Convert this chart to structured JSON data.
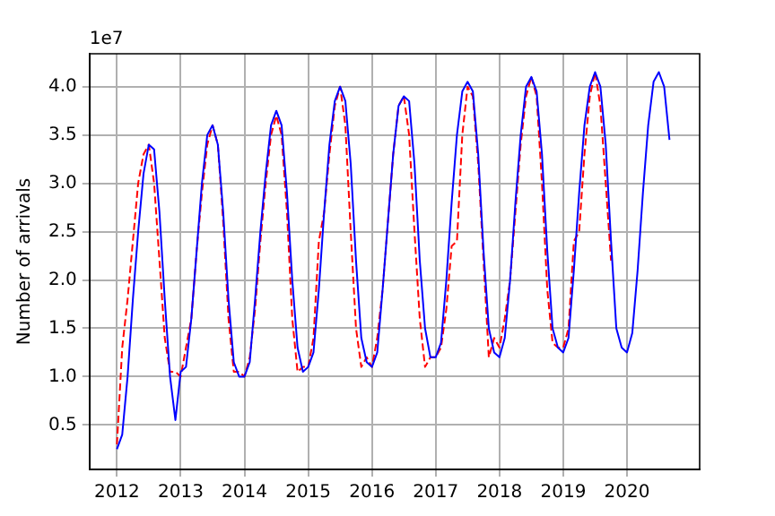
{
  "chart_data": {
    "type": "line",
    "ylabel": "Number of arrivals",
    "annotations": [
      "1e7"
    ],
    "grid": true,
    "marker": "none",
    "xlim": [
      2011.57,
      2021.14
    ],
    "xticks": [
      2012,
      2013,
      2014,
      2015,
      2016,
      2017,
      2018,
      2019,
      2020
    ],
    "ylim": [
      0.04,
      4.34
    ],
    "yticks": [
      {
        "value": 0.5,
        "label": "0.5"
      },
      {
        "value": 1,
        "label": "1.0"
      },
      {
        "value": 1.5,
        "label": "1.5"
      },
      {
        "value": 2,
        "label": "2.0"
      },
      {
        "value": 2.5,
        "label": "2.5"
      },
      {
        "value": 3,
        "label": "3.0"
      },
      {
        "value": 3.5,
        "label": "3.5"
      },
      {
        "value": 4,
        "label": "4.0"
      }
    ],
    "series": [
      {
        "color": "#0000ff",
        "line_style": "solid",
        "x": [
          2012,
          2012.083,
          2012.167,
          2012.25,
          2012.333,
          2012.417,
          2012.5,
          2012.583,
          2012.667,
          2012.75,
          2012.833,
          2012.917,
          2013,
          2013.083,
          2013.167,
          2013.25,
          2013.333,
          2013.417,
          2013.5,
          2013.583,
          2013.667,
          2013.75,
          2013.833,
          2013.917,
          2014,
          2014.083,
          2014.167,
          2014.25,
          2014.333,
          2014.417,
          2014.5,
          2014.583,
          2014.667,
          2014.75,
          2014.833,
          2014.917,
          2015,
          2015.083,
          2015.167,
          2015.25,
          2015.333,
          2015.417,
          2015.5,
          2015.583,
          2015.667,
          2015.75,
          2015.833,
          2015.917,
          2016,
          2016.083,
          2016.167,
          2016.25,
          2016.333,
          2016.417,
          2016.5,
          2016.583,
          2016.667,
          2016.75,
          2016.833,
          2016.917,
          2017,
          2017.083,
          2017.167,
          2017.25,
          2017.333,
          2017.417,
          2017.5,
          2017.583,
          2017.667,
          2017.75,
          2017.833,
          2017.917,
          2018,
          2018.083,
          2018.167,
          2018.25,
          2018.333,
          2018.417,
          2018.5,
          2018.583,
          2018.667,
          2018.75,
          2018.833,
          2018.917,
          2019,
          2019.083,
          2019.167,
          2019.25,
          2019.333,
          2019.417,
          2019.5,
          2019.583,
          2019.667,
          2019.75,
          2019.833,
          2019.917,
          2020,
          2020.083,
          2020.167,
          2020.25,
          2020.333,
          2020.417,
          2020.5,
          2020.583,
          2020.667
        ],
        "values": [
          0.25,
          0.4,
          1.0,
          1.8,
          2.5,
          3.1,
          3.4,
          3.35,
          2.7,
          1.8,
          1.0,
          0.55,
          1.05,
          1.1,
          1.6,
          2.3,
          3.0,
          3.5,
          3.6,
          3.4,
          2.7,
          1.8,
          1.15,
          1.0,
          1.0,
          1.15,
          1.8,
          2.5,
          3.1,
          3.6,
          3.75,
          3.6,
          2.9,
          2.0,
          1.3,
          1.05,
          1.1,
          1.25,
          1.9,
          2.7,
          3.4,
          3.85,
          4.0,
          3.85,
          3.2,
          2.2,
          1.4,
          1.15,
          1.1,
          1.25,
          1.9,
          2.6,
          3.3,
          3.8,
          3.9,
          3.85,
          3.2,
          2.2,
          1.5,
          1.2,
          1.2,
          1.35,
          2.0,
          2.8,
          3.5,
          3.95,
          4.05,
          3.95,
          3.3,
          2.3,
          1.5,
          1.25,
          1.2,
          1.4,
          2.0,
          2.8,
          3.5,
          4.0,
          4.1,
          3.95,
          3.3,
          2.3,
          1.5,
          1.3,
          1.25,
          1.4,
          2.1,
          2.9,
          3.6,
          4.0,
          4.15,
          4.0,
          3.4,
          2.4,
          1.5,
          1.3,
          1.25,
          1.45,
          2.1,
          2.9,
          3.6,
          4.05,
          4.15,
          4.0,
          3.45
        ]
      },
      {
        "color": "#ff0000",
        "line_style": "dashed",
        "x": [
          2012,
          2012.083,
          2012.167,
          2012.25,
          2012.333,
          2012.417,
          2012.5,
          2012.583,
          2012.667,
          2012.75,
          2012.833,
          2012.917,
          2013,
          2013.083,
          2013.167,
          2013.25,
          2013.333,
          2013.417,
          2013.5,
          2013.583,
          2013.667,
          2013.75,
          2013.833,
          2013.917,
          2014,
          2014.083,
          2014.167,
          2014.25,
          2014.333,
          2014.417,
          2014.5,
          2014.583,
          2014.667,
          2014.75,
          2014.833,
          2014.917,
          2015,
          2015.083,
          2015.167,
          2015.25,
          2015.333,
          2015.417,
          2015.5,
          2015.583,
          2015.667,
          2015.75,
          2015.833,
          2015.917,
          2016,
          2016.083,
          2016.167,
          2016.25,
          2016.333,
          2016.417,
          2016.5,
          2016.583,
          2016.667,
          2016.75,
          2016.833,
          2016.917,
          2017,
          2017.083,
          2017.167,
          2017.25,
          2017.333,
          2017.417,
          2017.5,
          2017.583,
          2017.667,
          2017.75,
          2017.833,
          2017.917,
          2018,
          2018.083,
          2018.167,
          2018.25,
          2018.333,
          2018.417,
          2018.5,
          2018.583,
          2018.667,
          2018.75,
          2018.833,
          2018.917,
          2019,
          2019.083,
          2019.167,
          2019.25,
          2019.333,
          2019.417,
          2019.5,
          2019.583,
          2019.667,
          2019.75
        ],
        "values": [
          0.3,
          1.3,
          1.8,
          2.4,
          3.0,
          3.3,
          3.4,
          3.0,
          2.2,
          1.4,
          1.05,
          1.05,
          1.0,
          1.3,
          1.6,
          2.3,
          2.9,
          3.4,
          3.6,
          3.4,
          2.6,
          1.6,
          1.05,
          1.05,
          1.0,
          1.2,
          1.7,
          2.4,
          3.0,
          3.5,
          3.7,
          3.5,
          2.7,
          1.6,
          1.05,
          1.1,
          1.1,
          1.4,
          2.4,
          2.7,
          3.3,
          3.8,
          4.0,
          3.6,
          2.5,
          1.5,
          1.1,
          1.2,
          1.1,
          1.4,
          1.9,
          2.6,
          3.3,
          3.8,
          3.9,
          3.5,
          2.5,
          1.6,
          1.1,
          1.2,
          1.2,
          1.3,
          1.7,
          2.35,
          2.4,
          3.5,
          4.0,
          3.9,
          3.2,
          2.2,
          1.2,
          1.4,
          1.3,
          1.6,
          2.0,
          2.7,
          3.4,
          3.9,
          4.1,
          3.9,
          3.0,
          1.9,
          1.35,
          1.3,
          1.3,
          1.5,
          2.4,
          2.5,
          3.3,
          3.9,
          4.15,
          3.8,
          3.0,
          2.2
        ]
      }
    ]
  }
}
